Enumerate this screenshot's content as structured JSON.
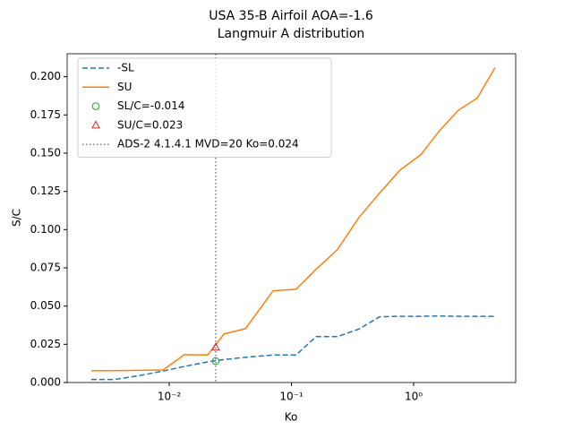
{
  "chart_data": {
    "type": "line",
    "title": "USA 35-B Airfoil AOA=-1.6",
    "subtitle": "Langmuir A distribution",
    "x_label": "Ko",
    "y_label": "S/C",
    "x": [
      0.0023,
      0.00357,
      0.00564,
      0.0089,
      0.0133,
      0.0206,
      0.028,
      0.042,
      0.0708,
      0.109,
      0.159,
      0.238,
      0.357,
      0.527,
      0.776,
      1.145,
      1.6,
      2.32,
      3.31,
      4.64
    ],
    "series": [
      {
        "name": "-SL",
        "color": "#1f77b4",
        "style": "dashed",
        "values": [
          0.002,
          0.002,
          0.0045,
          0.0075,
          0.0105,
          0.0135,
          0.015,
          0.0165,
          0.018,
          0.018,
          0.03,
          0.03,
          0.035,
          0.043,
          0.0433,
          0.0433,
          0.0435,
          0.0433,
          0.0433,
          0.0433
        ]
      },
      {
        "name": "SU",
        "color": "#ff7f0e",
        "style": "solid",
        "values": [
          0.0077,
          0.0078,
          0.008,
          0.0082,
          0.0182,
          0.018,
          0.0317,
          0.0352,
          0.06,
          0.061,
          0.074,
          0.087,
          0.108,
          0.124,
          0.139,
          0.149,
          0.164,
          0.178,
          0.186,
          0.206
        ]
      }
    ],
    "markers": [
      {
        "name": "SL/C=-0.014",
        "x": 0.024,
        "y": 0.014,
        "color": "#2ca02c",
        "marker": "circle"
      },
      {
        "name": "SU/C=0.023",
        "x": 0.024,
        "y": 0.023,
        "color": "#d62728",
        "marker": "triangle"
      }
    ],
    "vline": {
      "name": "ADS-2 4.1.4.1 MVD=20 Ko=0.024",
      "x": 0.024,
      "color": "#808080"
    },
    "xscale": "log",
    "xlim": [
      0.00146,
      6.84
    ],
    "ylim": [
      0,
      0.215
    ],
    "xticks": [
      {
        "value": 0.01,
        "label": "10⁻²"
      },
      {
        "value": 0.1,
        "label": "10⁻¹"
      },
      {
        "value": 1,
        "label": "10⁰"
      }
    ],
    "yticks": [
      {
        "value": 0,
        "label": "0.000"
      },
      {
        "value": 0.025,
        "label": "0.025"
      },
      {
        "value": 0.05,
        "label": "0.050"
      },
      {
        "value": 0.075,
        "label": "0.075"
      },
      {
        "value": 0.1,
        "label": "0.100"
      },
      {
        "value": 0.125,
        "label": "0.125"
      },
      {
        "value": 0.15,
        "label": "0.150"
      },
      {
        "value": 0.175,
        "label": "0.175"
      },
      {
        "value": 0.2,
        "label": "0.200"
      }
    ],
    "legend": "upper left"
  }
}
